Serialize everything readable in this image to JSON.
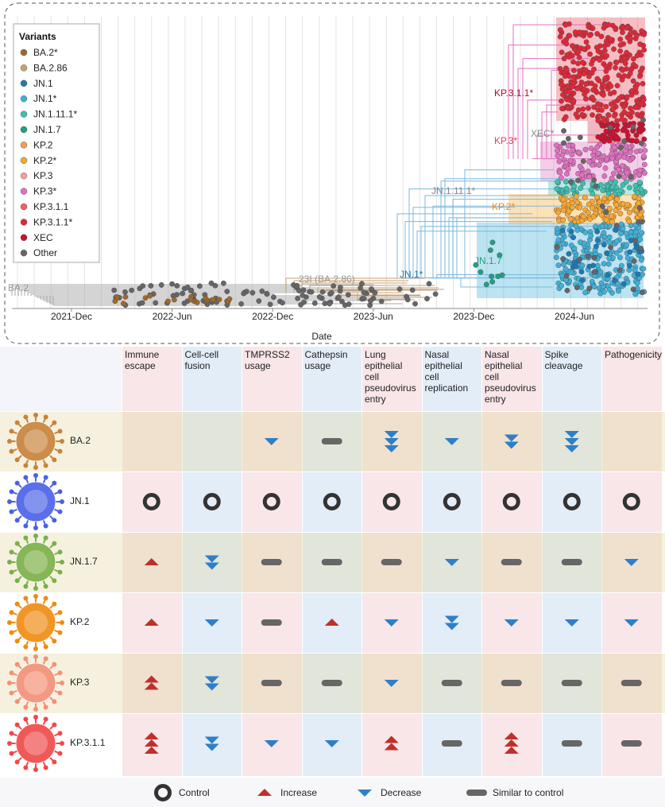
{
  "tree": {
    "legend_title": "Variants",
    "legend": [
      {
        "name": "BA.2*",
        "color": "#a0692a"
      },
      {
        "name": "BA.2.86",
        "color": "#c8a070"
      },
      {
        "name": "JN.1",
        "color": "#1f78b4"
      },
      {
        "name": "JN.1*",
        "color": "#3fb0d8"
      },
      {
        "name": "JN.1.11.1*",
        "color": "#3cc0b0"
      },
      {
        "name": "JN.1.7",
        "color": "#20a080"
      },
      {
        "name": "KP.2",
        "color": "#f0a050"
      },
      {
        "name": "KP.2*",
        "color": "#f8a830"
      },
      {
        "name": "KP.3",
        "color": "#f4a0a0"
      },
      {
        "name": "KP.3*",
        "color": "#e070c0"
      },
      {
        "name": "KP.3.1.1",
        "color": "#f06060"
      },
      {
        "name": "KP.3.1.1*",
        "color": "#e02838"
      },
      {
        "name": "XEC",
        "color": "#d01030"
      },
      {
        "name": "Other",
        "color": "#666666"
      }
    ],
    "clade_labels": [
      {
        "text": "BA.2",
        "color": "#999999"
      },
      {
        "text": "23I (BA.2.86)",
        "color": "#999999"
      },
      {
        "text": "JN.1*",
        "color": "#1f78b4"
      },
      {
        "text": "JN.1.7",
        "color": "#20a080"
      },
      {
        "text": "JN.1.11.1*",
        "color": "#888888"
      },
      {
        "text": "KP.2*",
        "color": "#f08c10"
      },
      {
        "text": "KP.3*",
        "color": "#e04060"
      },
      {
        "text": "XEC*",
        "color": "#888888"
      },
      {
        "text": "KP.3.1.1*",
        "color": "#b01020"
      }
    ],
    "xticks": [
      "2021-Dec",
      "2022-Jun",
      "2022-Dec",
      "2023-Jun",
      "2023-Dec",
      "2024-Jun"
    ],
    "xlabel": "Date"
  },
  "table": {
    "columns": [
      "Immune escape",
      "Cell-cell fusion",
      "TMPRSS2 usage",
      "Cathepsin usage",
      "Lung epithelial cell pseudovirus entry",
      "Nasal epithelial cell replication",
      "Nasal epithelial cell pseudovirus entry",
      "Spike cleavage",
      "Pathogenicity"
    ],
    "rows": [
      {
        "name": "BA.2",
        "color": "#c8823a",
        "cells": [
          null,
          null,
          {
            "legend": 2,
            "count": 1
          },
          {
            "legend": 3,
            "count": 1
          },
          {
            "legend": 2,
            "count": 3
          },
          {
            "legend": 2,
            "count": 1
          },
          {
            "legend": 2,
            "count": 2
          },
          {
            "legend": 2,
            "count": 3
          },
          null
        ]
      },
      {
        "name": "JN.1",
        "color": "#4a60e8",
        "cells": [
          {
            "legend": 0,
            "count": 1
          },
          {
            "legend": 0,
            "count": 1
          },
          {
            "legend": 0,
            "count": 1
          },
          {
            "legend": 0,
            "count": 1
          },
          {
            "legend": 0,
            "count": 1
          },
          {
            "legend": 0,
            "count": 1
          },
          {
            "legend": 0,
            "count": 1
          },
          {
            "legend": 0,
            "count": 1
          },
          {
            "legend": 0,
            "count": 1
          }
        ]
      },
      {
        "name": "JN.1.7",
        "color": "#7ab048",
        "cells": [
          {
            "legend": 1,
            "count": 1
          },
          {
            "legend": 2,
            "count": 2
          },
          {
            "legend": 3,
            "count": 1
          },
          {
            "legend": 3,
            "count": 1
          },
          {
            "legend": 3,
            "count": 1
          },
          {
            "legend": 2,
            "count": 1
          },
          {
            "legend": 3,
            "count": 1
          },
          {
            "legend": 3,
            "count": 1
          },
          {
            "legend": 2,
            "count": 1
          }
        ]
      },
      {
        "name": "KP.2",
        "color": "#f08a10",
        "cells": [
          {
            "legend": 1,
            "count": 1
          },
          {
            "legend": 2,
            "count": 1
          },
          {
            "legend": 3,
            "count": 1
          },
          {
            "legend": 1,
            "count": 1
          },
          {
            "legend": 2,
            "count": 1
          },
          {
            "legend": 2,
            "count": 2
          },
          {
            "legend": 2,
            "count": 1
          },
          {
            "legend": 2,
            "count": 1
          },
          {
            "legend": 2,
            "count": 1
          }
        ]
      },
      {
        "name": "KP.3",
        "color": "#f49078",
        "cells": [
          {
            "legend": 1,
            "count": 2
          },
          {
            "legend": 2,
            "count": 2
          },
          {
            "legend": 3,
            "count": 1
          },
          {
            "legend": 3,
            "count": 1
          },
          {
            "legend": 2,
            "count": 1
          },
          {
            "legend": 3,
            "count": 1
          },
          {
            "legend": 3,
            "count": 1
          },
          {
            "legend": 3,
            "count": 1
          },
          {
            "legend": 3,
            "count": 1
          }
        ]
      },
      {
        "name": "KP.3.1.1",
        "color": "#f04848",
        "cells": [
          {
            "legend": 1,
            "count": 3
          },
          {
            "legend": 2,
            "count": 2
          },
          {
            "legend": 2,
            "count": 1
          },
          {
            "legend": 2,
            "count": 1
          },
          {
            "legend": 1,
            "count": 2
          },
          {
            "legend": 3,
            "count": 1
          },
          {
            "legend": 1,
            "count": 3
          },
          {
            "legend": 3,
            "count": 1
          },
          {
            "legend": 3,
            "count": 1
          }
        ]
      }
    ],
    "legend": [
      "Control",
      "Increase",
      "Decrease",
      "Similar to control"
    ]
  }
}
